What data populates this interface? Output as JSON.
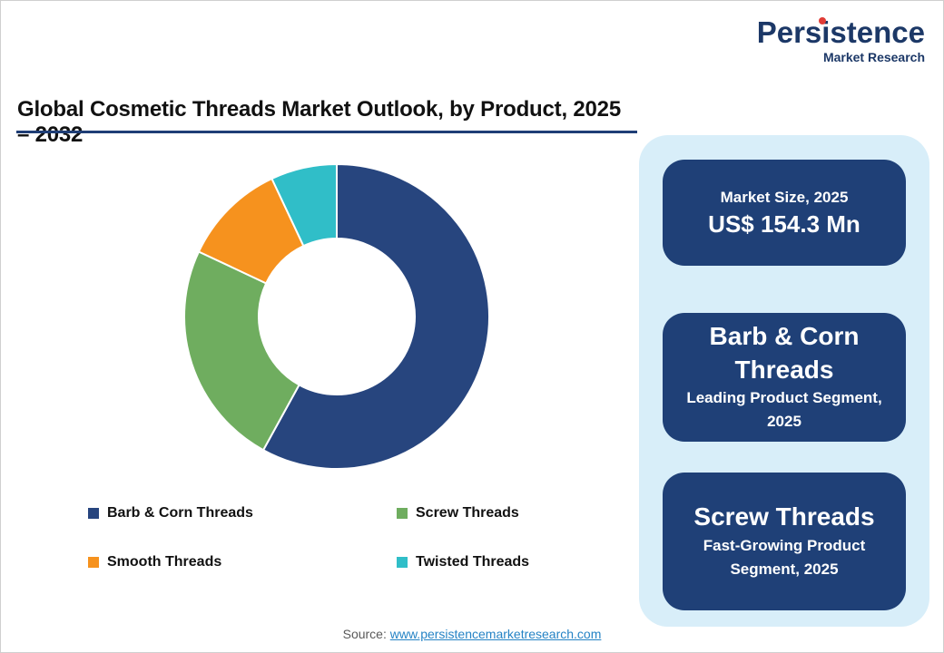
{
  "logo": {
    "brand": "Persistence",
    "sub": "Market Research",
    "dot_color": "#E03C36"
  },
  "title": "Global Cosmetic Threads Market Outlook, by Product, 2025 – 2032",
  "chart_data": {
    "type": "pie",
    "donut": true,
    "title": "Global Cosmetic Threads Market Outlook, by Product, 2025 – 2032",
    "categories": [
      "Barb & Corn Threads",
      "Screw Threads",
      "Smooth Threads",
      "Twisted Threads"
    ],
    "values": [
      58,
      24,
      11,
      7
    ],
    "colors": [
      "#27457E",
      "#6FAD5F",
      "#F6921E",
      "#30BEC8"
    ],
    "inner_radius_ratio": 0.51,
    "start_angle_deg": 0,
    "direction": "clockwise",
    "legend_position": "bottom",
    "data_labels": false,
    "note": "Segment shares estimated from arc angles; no value labels shown in chart"
  },
  "sidebar": {
    "cards": [
      {
        "line1": "Market Size, 2025",
        "line2": "US$ 154.3 Mn"
      },
      {
        "line1": "Barb & Corn Threads",
        "line2": "Leading Product Segment, 2025"
      },
      {
        "line1": "Screw Threads",
        "line2": "Fast-Growing Product Segment, 2025"
      }
    ],
    "panel_bg": "#D8EEF9",
    "card_bg": "#1F4077"
  },
  "footer": {
    "source_label": "Source:",
    "source_link": "www.persistencemarketresearch.com"
  }
}
